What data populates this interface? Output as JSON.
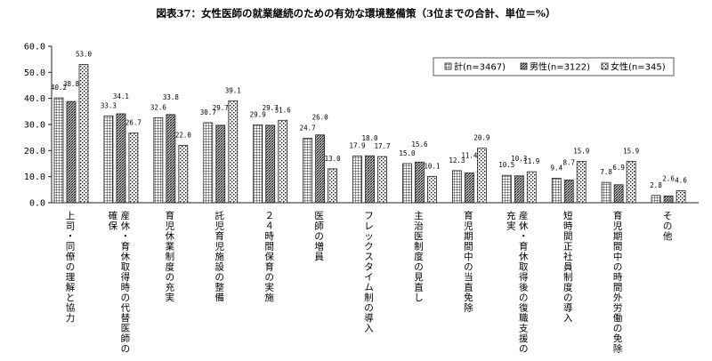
{
  "chart_data": {
    "type": "bar",
    "title": "図表37：女性医師の就業継続のための有効な環境整備策（3位までの合計、単位＝%）",
    "ylim": [
      0,
      60
    ],
    "yticks": [
      "0.0",
      "10.0",
      "20.0",
      "30.0",
      "40.0",
      "50.0",
      "60.0"
    ],
    "categories": [
      "上司・同僚の理解と協力",
      "産休・育休取得時の代替医師の確保",
      "育児休業制度の充実",
      "託児育児施設の整備",
      "24時間保育の実施",
      "医師の増員",
      "フレックスタイム制の導入",
      "主治医制度の見直し",
      "育児期間中の当直免除",
      "産休・育休取得後の復職支援の充実",
      "短時間正社員制度の導入",
      "育児期間中の時間外労働の免除",
      "その他"
    ],
    "series": [
      {
        "name": "計(n=3467)",
        "pattern": "pattern-total",
        "values": [
          40.2,
          33.3,
          32.6,
          30.7,
          29.9,
          24.7,
          17.9,
          15.0,
          12.3,
          10.5,
          9.4,
          7.8,
          2.8
        ]
      },
      {
        "name": "男性(n=3122)",
        "pattern": "pattern-male",
        "values": [
          38.8,
          34.1,
          33.8,
          29.7,
          29.7,
          26.0,
          18.0,
          15.6,
          11.4,
          10.3,
          8.7,
          6.9,
          2.6
        ]
      },
      {
        "name": "女性(n=345)",
        "pattern": "pattern-female",
        "values": [
          53.0,
          26.7,
          22.0,
          39.1,
          31.6,
          13.0,
          17.7,
          10.1,
          20.9,
          11.9,
          15.9,
          15.9,
          4.6
        ]
      }
    ],
    "legend": "top-right",
    "grid": false
  }
}
